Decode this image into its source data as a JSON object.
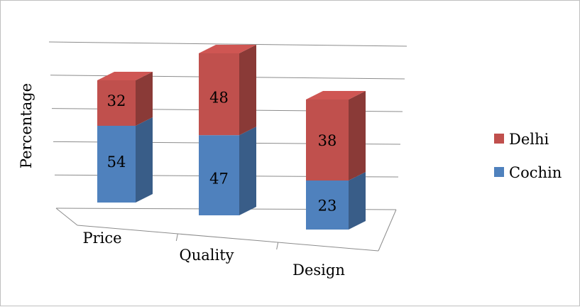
{
  "chart_data": {
    "type": "bar",
    "stacked": true,
    "style": "3d",
    "categories": [
      "Price",
      "Quality",
      "Design"
    ],
    "series": [
      {
        "name": "Cochin",
        "values": [
          54,
          47,
          23
        ],
        "color": "#4f81bd"
      },
      {
        "name": "Delhi",
        "values": [
          32,
          48,
          38
        ],
        "color": "#c0504d"
      }
    ],
    "title": "",
    "xlabel": "",
    "ylabel": "Percentage",
    "ylim": [
      0,
      100
    ],
    "grid": true,
    "legend": "right"
  }
}
